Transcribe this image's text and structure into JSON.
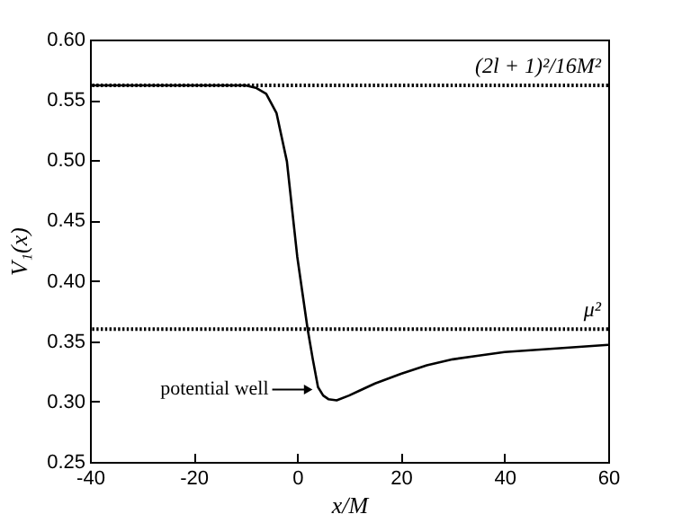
{
  "chart_data": {
    "type": "line",
    "xlabel": "x/M",
    "ylabel": "V₁(x)",
    "series": [
      {
        "color": "#000000",
        "x": [
          -40,
          -20,
          -10,
          -8,
          -6,
          -4,
          -2,
          0,
          1,
          2,
          3,
          4,
          5,
          6,
          7.6,
          10,
          12,
          15,
          20,
          25,
          30,
          35,
          40,
          50,
          60
        ],
        "values": [
          0.562,
          0.562,
          0.562,
          0.56,
          0.555,
          0.539,
          0.499,
          0.42,
          0.39,
          0.36,
          0.335,
          0.312,
          0.305,
          0.302,
          0.301,
          0.305,
          0.309,
          0.315,
          0.323,
          0.33,
          0.335,
          0.338,
          0.341,
          0.344,
          0.347
        ]
      }
    ],
    "xlim": [
      -40,
      60
    ],
    "xticks": [
      -40,
      -20,
      0,
      20,
      40,
      60
    ],
    "ylim": [
      0.25,
      0.6
    ],
    "yticks": [
      {
        "value": 0.25,
        "label": "0.25"
      },
      {
        "value": 0.3,
        "label": "0.30"
      },
      {
        "value": 0.35,
        "label": "0.35"
      },
      {
        "value": 0.4,
        "label": "0.40"
      },
      {
        "value": 0.45,
        "label": "0.45"
      },
      {
        "value": 0.5,
        "label": "0.50"
      },
      {
        "value": 0.55,
        "label": "0.55"
      },
      {
        "value": 0.6,
        "label": "0.60"
      }
    ],
    "ref_lines": [
      {
        "axis": "y",
        "value": 0.562,
        "label": "(2l + 1)²/16M²",
        "line_style": "dotted",
        "color": "#000000"
      },
      {
        "axis": "y",
        "value": 0.36,
        "label": "μ²",
        "line_style": "dotted",
        "color": "#000000"
      }
    ],
    "annotations": [
      {
        "text": "potential well",
        "x": 3.5,
        "y": 0.31
      }
    ],
    "grid": false,
    "marker": "none",
    "line_style": "solid"
  }
}
